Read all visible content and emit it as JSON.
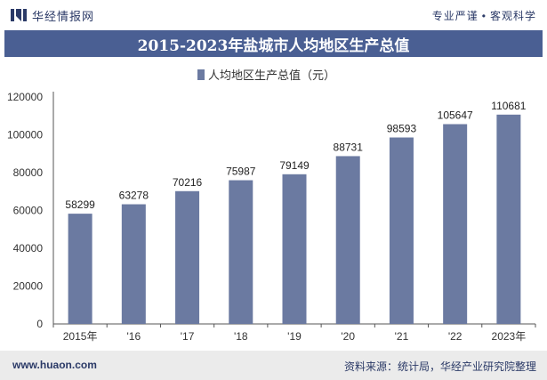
{
  "header": {
    "brand_name": "华经情报网",
    "tagline_left": "专业严谨",
    "tagline_right": "客观科学"
  },
  "title": "2015-2023年盐城市人均地区生产总值",
  "footer": {
    "site": "www.huaon.com",
    "source": "资料来源：统计局，华经产业研究院整理"
  },
  "colors": {
    "bar": "#6b7aa1",
    "title_bg": "#4a5f93",
    "text_dark": "#2b3a67"
  },
  "chart_data": {
    "type": "bar",
    "categories": [
      "2015年",
      "'16",
      "'17",
      "'18",
      "'19",
      "'20",
      "'21",
      "'22",
      "2023年"
    ],
    "series": [
      {
        "name": "人均地区生产总值（元）",
        "values": [
          58299,
          63278,
          70216,
          75987,
          79149,
          88731,
          98593,
          105647,
          110681
        ]
      }
    ],
    "ylim": [
      0,
      120000
    ],
    "yticks": [
      "0",
      "20000",
      "40000",
      "60000",
      "80000",
      "100000",
      "120000"
    ],
    "legend_position": "top-center",
    "grid": false
  }
}
